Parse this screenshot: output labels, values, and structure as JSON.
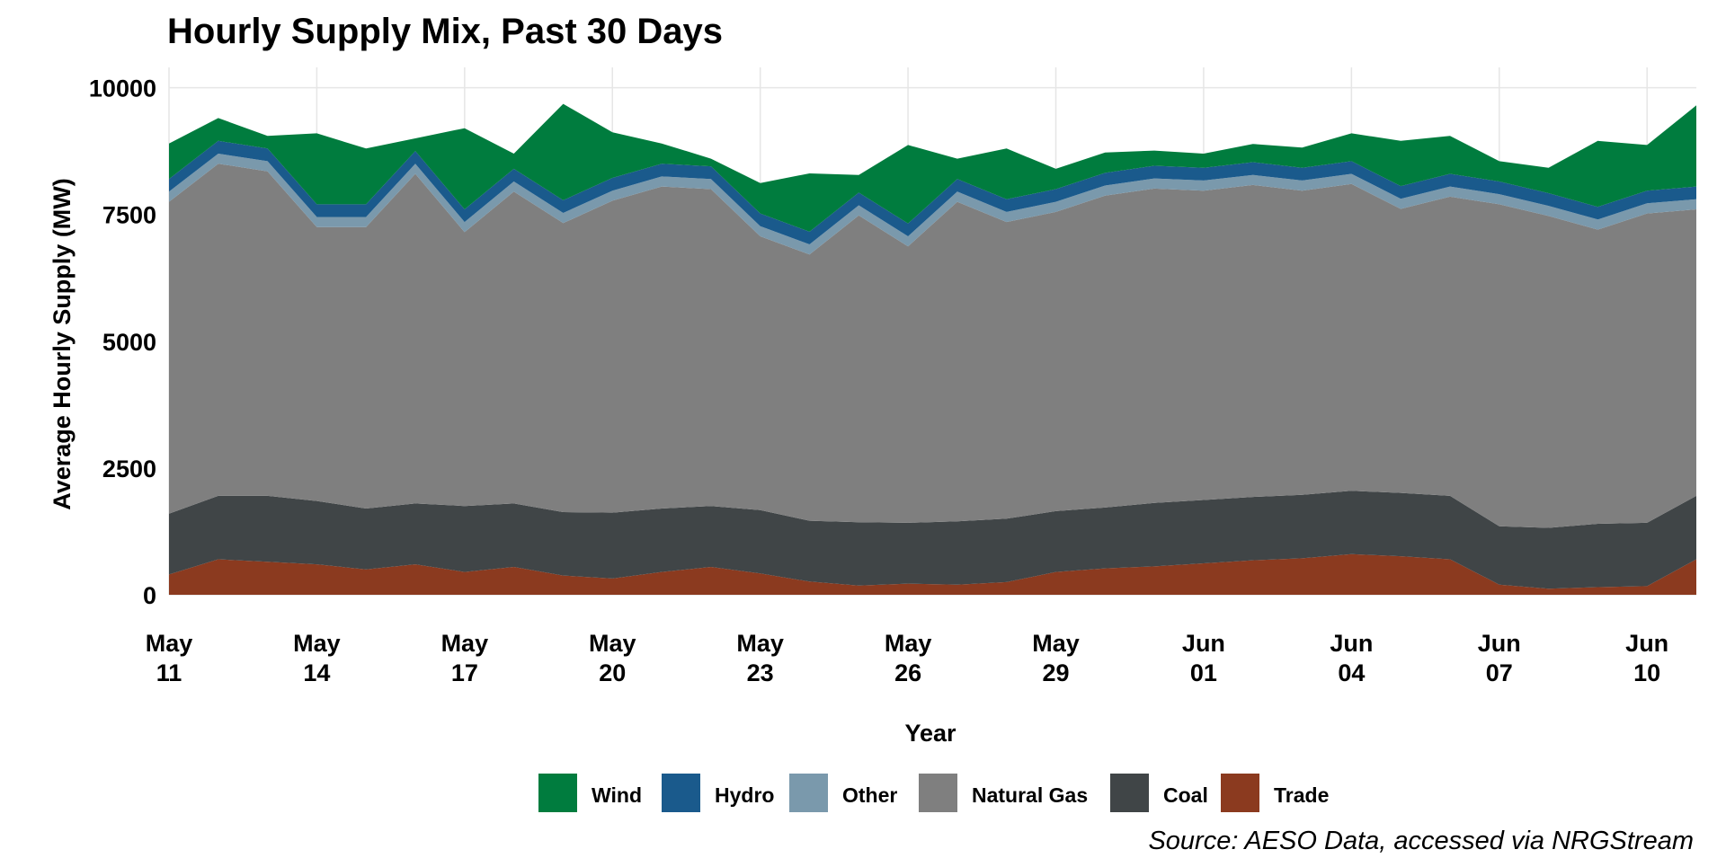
{
  "chart_data": {
    "type": "area",
    "stacked": true,
    "title": "Hourly Supply Mix, Past 30 Days",
    "xlabel": "Year",
    "ylabel": "Average Hourly Supply (MW)",
    "source": "Source: AESO Data, accessed via NRGStream",
    "xlim": [
      "2023-05-11",
      "2023-06-11"
    ],
    "ylim": [
      0,
      10400
    ],
    "y_ticks": [
      {
        "value": 0,
        "label": "0"
      },
      {
        "value": 2500,
        "label": "2500"
      },
      {
        "value": 5000,
        "label": "5000"
      },
      {
        "value": 7500,
        "label": "7500"
      },
      {
        "value": 10000,
        "label": "10000"
      }
    ],
    "x_ticks": [
      {
        "date": "2023-05-11",
        "month": "May",
        "day": "11"
      },
      {
        "date": "2023-05-14",
        "month": "May",
        "day": "14"
      },
      {
        "date": "2023-05-17",
        "month": "May",
        "day": "17"
      },
      {
        "date": "2023-05-20",
        "month": "May",
        "day": "20"
      },
      {
        "date": "2023-05-23",
        "month": "May",
        "day": "23"
      },
      {
        "date": "2023-05-26",
        "month": "May",
        "day": "26"
      },
      {
        "date": "2023-05-29",
        "month": "May",
        "day": "29"
      },
      {
        "date": "2023-06-01",
        "month": "Jun",
        "day": "01"
      },
      {
        "date": "2023-06-04",
        "month": "Jun",
        "day": "04"
      },
      {
        "date": "2023-06-07",
        "month": "Jun",
        "day": "07"
      },
      {
        "date": "2023-06-10",
        "month": "Jun",
        "day": "10"
      }
    ],
    "grid": true,
    "legend_position": "bottom",
    "x": [
      "2023-05-11",
      "2023-05-12",
      "2023-05-13",
      "2023-05-14",
      "2023-05-15",
      "2023-05-16",
      "2023-05-17",
      "2023-05-18",
      "2023-05-19",
      "2023-05-20",
      "2023-05-21",
      "2023-05-22",
      "2023-05-23",
      "2023-05-24",
      "2023-05-25",
      "2023-05-26",
      "2023-05-27",
      "2023-05-28",
      "2023-05-29",
      "2023-05-30",
      "2023-05-31",
      "2023-06-01",
      "2023-06-02",
      "2023-06-03",
      "2023-06-04",
      "2023-06-05",
      "2023-06-06",
      "2023-06-07",
      "2023-06-08",
      "2023-06-09",
      "2023-06-10",
      "2023-06-11"
    ],
    "series": [
      {
        "name": "Trade",
        "color": "#8B3A1F",
        "values": [
          400,
          700,
          650,
          600,
          500,
          600,
          450,
          550,
          380,
          320,
          450,
          550,
          420,
          260,
          180,
          220,
          200,
          250,
          450,
          520,
          560,
          620,
          680,
          720,
          800,
          760,
          700,
          200,
          120,
          150,
          170,
          700
        ]
      },
      {
        "name": "Coal",
        "color": "#404547",
        "values": [
          1200,
          1250,
          1300,
          1250,
          1200,
          1200,
          1300,
          1250,
          1250,
          1300,
          1250,
          1200,
          1250,
          1200,
          1250,
          1200,
          1250,
          1250,
          1200,
          1200,
          1250,
          1250,
          1250,
          1250,
          1250,
          1250,
          1250,
          1150,
          1200,
          1250,
          1250,
          1250
        ]
      },
      {
        "name": "Natural Gas",
        "color": "#7F7F7F",
        "values": [
          6150,
          6550,
          6400,
          5400,
          5550,
          6500,
          5400,
          6150,
          5700,
          6150,
          6350,
          6250,
          5400,
          5250,
          6050,
          5450,
          6300,
          5850,
          5900,
          6150,
          6200,
          6100,
          6150,
          6000,
          6050,
          5600,
          5900,
          6350,
          6150,
          5800,
          6100,
          5650
        ]
      },
      {
        "name": "Other",
        "color": "#7A99AC",
        "values": [
          200,
          200,
          200,
          200,
          200,
          200,
          200,
          200,
          200,
          200,
          200,
          200,
          200,
          200,
          200,
          200,
          200,
          200,
          200,
          200,
          200,
          200,
          200,
          200,
          200,
          200,
          200,
          200,
          200,
          200,
          200,
          200
        ]
      },
      {
        "name": "Hydro",
        "color": "#1A5A8C",
        "values": [
          250,
          250,
          250,
          250,
          250,
          250,
          250,
          250,
          250,
          250,
          250,
          250,
          250,
          250,
          250,
          250,
          250,
          250,
          250,
          250,
          250,
          250,
          250,
          250,
          250,
          250,
          250,
          250,
          250,
          250,
          250,
          250
        ]
      },
      {
        "name": "Wind",
        "color": "#007C3E",
        "values": [
          700,
          450,
          250,
          1400,
          1100,
          250,
          1600,
          300,
          1900,
          900,
          400,
          150,
          600,
          1150,
          350,
          1550,
          400,
          1000,
          400,
          400,
          300,
          280,
          360,
          400,
          550,
          890,
          750,
          400,
          500,
          1300,
          900,
          1600
        ]
      }
    ]
  },
  "legend": [
    {
      "label": "Wind",
      "color": "#007C3E"
    },
    {
      "label": "Hydro",
      "color": "#1A5A8C"
    },
    {
      "label": "Other",
      "color": "#7A99AC"
    },
    {
      "label": "Natural Gas",
      "color": "#7F7F7F"
    },
    {
      "label": "Coal",
      "color": "#404547"
    },
    {
      "label": "Trade",
      "color": "#8B3A1F"
    }
  ]
}
